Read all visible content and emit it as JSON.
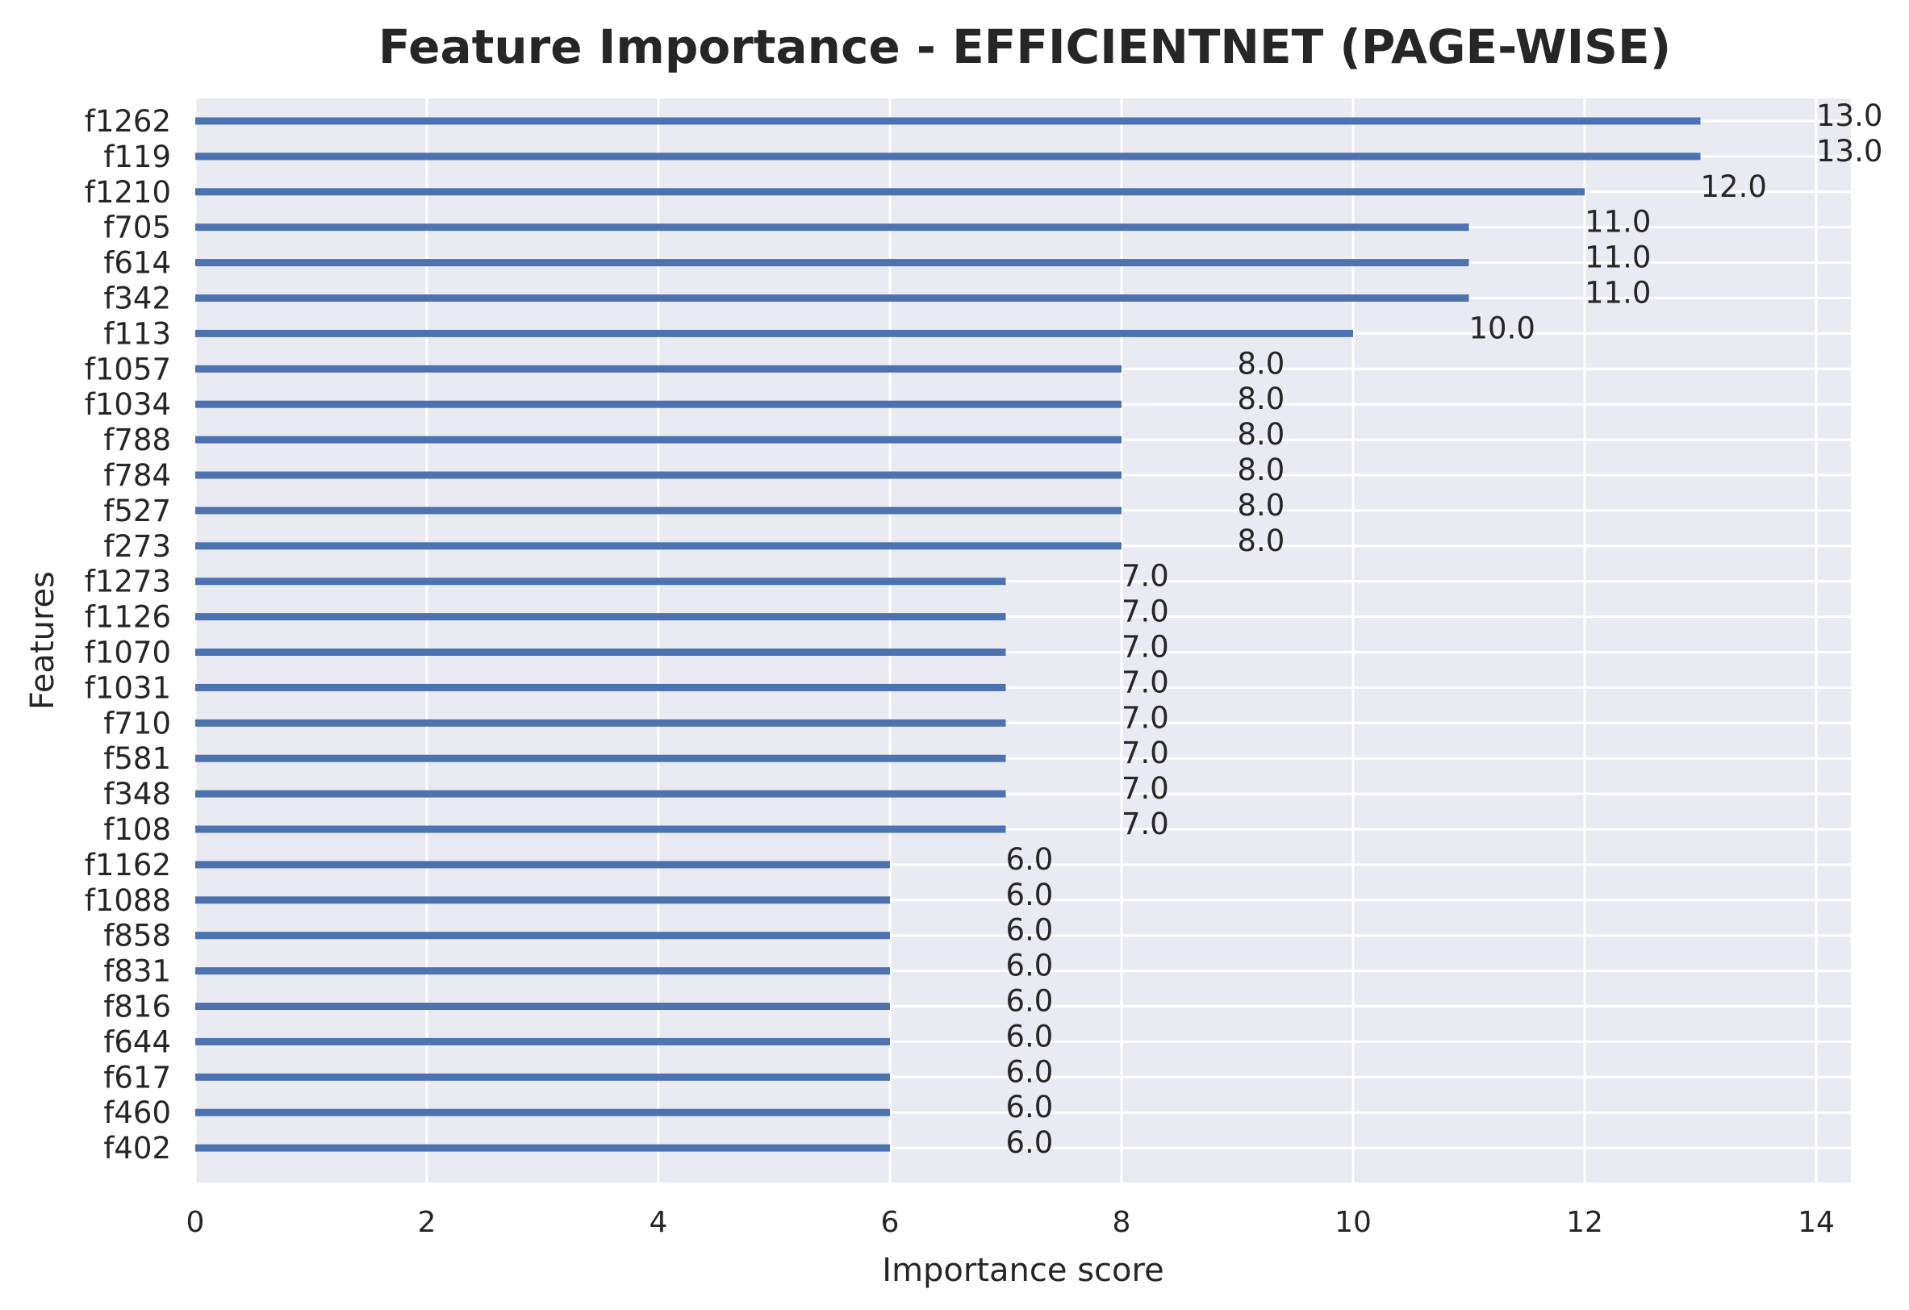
{
  "chart_data": {
    "type": "bar",
    "orientation": "horizontal",
    "title": "Feature Importance - EFFICIENTNET (PAGE-WISE)",
    "xlabel": "Importance score",
    "ylabel": "Features",
    "xlim": [
      0,
      14.3
    ],
    "xticks": [
      0,
      2,
      4,
      6,
      8,
      10,
      12,
      14
    ],
    "grid": true,
    "colors": {
      "bar": "#4c72b0",
      "plot_bg": "#eaeaf2",
      "grid": "#ffffff",
      "text": "#262626"
    },
    "categories": [
      "f1262",
      "f119",
      "f1210",
      "f705",
      "f614",
      "f342",
      "f113",
      "f1057",
      "f1034",
      "f788",
      "f784",
      "f527",
      "f273",
      "f1273",
      "f1126",
      "f1070",
      "f1031",
      "f710",
      "f581",
      "f348",
      "f108",
      "f1162",
      "f1088",
      "f858",
      "f831",
      "f816",
      "f644",
      "f617",
      "f460",
      "f402"
    ],
    "values": [
      13.0,
      13.0,
      12.0,
      11.0,
      11.0,
      11.0,
      10.0,
      8.0,
      8.0,
      8.0,
      8.0,
      8.0,
      8.0,
      7.0,
      7.0,
      7.0,
      7.0,
      7.0,
      7.0,
      7.0,
      7.0,
      6.0,
      6.0,
      6.0,
      6.0,
      6.0,
      6.0,
      6.0,
      6.0,
      6.0
    ],
    "data_labels": [
      "13.0",
      "13.0",
      "12.0",
      "11.0",
      "11.0",
      "11.0",
      "10.0",
      "8.0",
      "8.0",
      "8.0",
      "8.0",
      "8.0",
      "8.0",
      "7.0",
      "7.0",
      "7.0",
      "7.0",
      "7.0",
      "7.0",
      "7.0",
      "7.0",
      "6.0",
      "6.0",
      "6.0",
      "6.0",
      "6.0",
      "6.0",
      "6.0",
      "6.0",
      "6.0"
    ]
  }
}
